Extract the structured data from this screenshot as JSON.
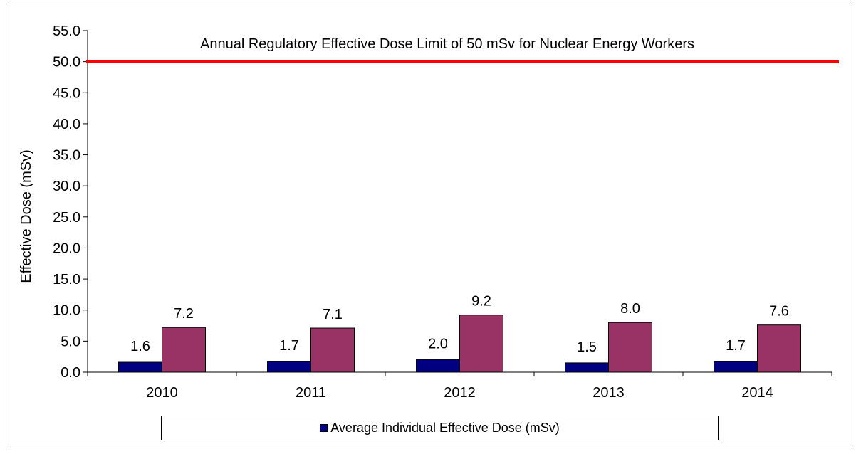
{
  "chart_data": {
    "type": "bar",
    "ylabel": "Effective Dose (mSv)",
    "xlabel": "",
    "ylim": [
      0,
      55
    ],
    "yticks": [
      "0.0",
      "5.0",
      "10.0",
      "15.0",
      "20.0",
      "25.0",
      "30.0",
      "35.0",
      "40.0",
      "45.0",
      "50.0",
      "55.0"
    ],
    "categories": [
      "2010",
      "2011",
      "2012",
      "2013",
      "2014"
    ],
    "series": [
      {
        "name": "Average Individual Effective Dose (mSv)",
        "values": [
          1.6,
          1.7,
          2.0,
          1.5,
          1.7
        ],
        "labels": [
          "1.6",
          "1.7",
          "2.0",
          "1.5",
          "1.7"
        ],
        "color": "#000080"
      },
      {
        "values": [
          7.2,
          7.1,
          9.2,
          8.0,
          7.6
        ],
        "labels": [
          "7.2",
          "7.1",
          "9.2",
          "8.0",
          "7.6"
        ],
        "color": "#993366"
      }
    ],
    "reference_line": {
      "value": 50,
      "color": "#ff0000",
      "annotation": "Annual Regulatory Effective Dose  Limit of  50 mSv for Nuclear Energy Workers"
    },
    "grid": false,
    "legend_position": "bottom"
  }
}
